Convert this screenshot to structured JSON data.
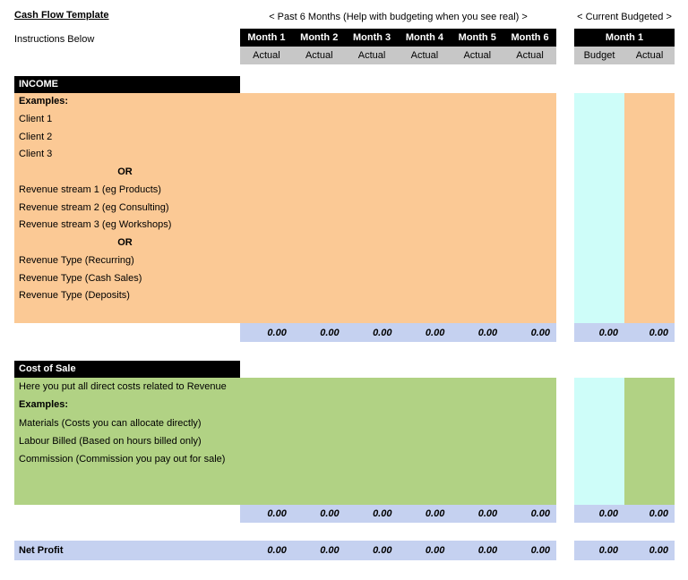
{
  "title": "Cash Flow Template",
  "subtitle": "Instructions Below",
  "past_header": "< Past 6 Months (Help with budgeting when you see real) >",
  "current_header": "< Current Budgeted >",
  "months": [
    "Month 1",
    "Month 2",
    "Month 3",
    "Month 4",
    "Month 5",
    "Month 6"
  ],
  "actual_labels": [
    "Actual",
    "Actual",
    "Actual",
    "Actual",
    "Actual",
    "Actual"
  ],
  "current_month": "Month 1",
  "current_cols": [
    "Budget",
    "Actual"
  ],
  "income": {
    "header": "INCOME",
    "rows": [
      {
        "text": "Examples:",
        "bold": true
      },
      {
        "text": "Client 1"
      },
      {
        "text": "Client 2"
      },
      {
        "text": "Client 3"
      },
      {
        "text": "OR",
        "bold": true,
        "center": true
      },
      {
        "text": "Revenue stream 1 (eg Products)"
      },
      {
        "text": "Revenue stream 2 (eg Consulting)"
      },
      {
        "text": "Revenue stream 3 (eg Workshops)"
      },
      {
        "text": "OR",
        "bold": true,
        "center": true
      },
      {
        "text": "Revenue Type (Recurring)"
      },
      {
        "text": "Revenue Type (Cash Sales)"
      },
      {
        "text": "Revenue Type (Deposits)"
      },
      {
        "text": ""
      }
    ],
    "totals": [
      "0.00",
      "0.00",
      "0.00",
      "0.00",
      "0.00",
      "0.00"
    ],
    "current_totals": [
      "0.00",
      "0.00"
    ]
  },
  "cost_of_sale": {
    "header": "Cost of Sale",
    "rows": [
      {
        "text": "Here you put all direct costs related to Revenue"
      },
      {
        "text": "Examples:",
        "bold": true
      },
      {
        "text": "Materials (Costs you can allocate directly)"
      },
      {
        "text": "Labour Billed (Based on hours billed only)"
      },
      {
        "text": "Commission (Commission you pay out for sale)"
      },
      {
        "text": ""
      },
      {
        "text": ""
      }
    ],
    "totals": [
      "0.00",
      "0.00",
      "0.00",
      "0.00",
      "0.00",
      "0.00"
    ],
    "current_totals": [
      "0.00",
      "0.00"
    ]
  },
  "net_profit": {
    "label": "Net Profit",
    "totals": [
      "0.00",
      "0.00",
      "0.00",
      "0.00",
      "0.00",
      "0.00"
    ],
    "current_totals": [
      "0.00",
      "0.00"
    ]
  },
  "colors": {
    "income_fill": "#FBC995",
    "cost_fill": "#B1D284",
    "budget_fill": "#CEFDF9",
    "totals_fill": "#C5D1F0",
    "header_bar": "#000000",
    "subheader_fill": "#C7C7C7"
  }
}
